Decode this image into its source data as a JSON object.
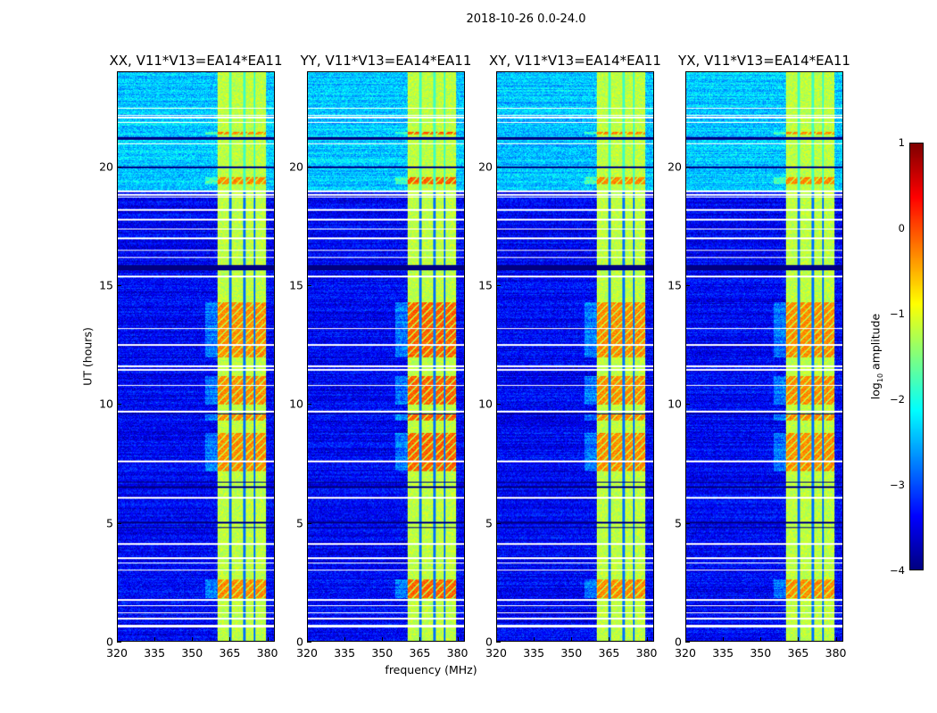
{
  "chart_data": {
    "type": "heatmap",
    "title": "2018-10-26 0.0-24.0",
    "xlabel": "frequency (MHz)",
    "ylabel": "UT (hours)",
    "xlim": [
      320,
      383
    ],
    "ylim": [
      0,
      24
    ],
    "xticks": [
      "320",
      "335",
      "350",
      "365",
      "380"
    ],
    "xtick_values": [
      320,
      335,
      350,
      365,
      380
    ],
    "yticks": [
      "0",
      "5",
      "10",
      "15",
      "20"
    ],
    "ytick_values": [
      0,
      5,
      10,
      15,
      20
    ],
    "colorbar": {
      "label_main": "log",
      "label_sub": "10",
      "label_rest": " amplitude",
      "colormap": "jet",
      "range": [
        -4,
        1
      ],
      "ticks": [
        "1",
        "0",
        "−1",
        "−2",
        "−3",
        "−4"
      ],
      "tick_values": [
        1,
        0,
        -1,
        -2,
        -3,
        -4
      ]
    },
    "panels": [
      {
        "title": "XX, V11*V13=EA14*EA11",
        "bright_rows_level": -0.3
      },
      {
        "title": "YY, V11*V13=EA14*EA11",
        "bright_rows_level": -0.1
      },
      {
        "title": "XY, V11*V13=EA14*EA11",
        "bright_rows_level": -0.3
      },
      {
        "title": "YX, V11*V13=EA14*EA11",
        "bright_rows_level": -0.3
      }
    ],
    "signal_band_mhz": [
      360,
      379.5
    ],
    "channel_gaps_mhz": [
      365.3,
      370.8,
      375.0
    ],
    "background_level": {
      "before_19h": -3.4,
      "after_19h": -2.4
    },
    "band_level": -1.2,
    "bright_time_ranges_hours": [
      [
        1.8,
        2.6
      ],
      [
        7.2,
        8.8
      ],
      [
        9.3,
        9.6
      ],
      [
        10.0,
        11.2
      ],
      [
        12.0,
        14.3
      ],
      [
        19.3,
        19.6
      ],
      [
        21.4,
        21.5
      ]
    ],
    "flagged_white_hours": [
      0.6,
      0.65,
      0.95,
      1.2,
      1.5,
      1.75,
      3.0,
      3.3,
      3.5,
      4.1,
      6.05,
      7.6,
      9.7,
      10.8,
      11.45,
      11.6,
      12.5,
      13.2,
      15.4,
      16.2,
      16.5,
      17.0,
      17.4,
      17.8,
      18.2,
      18.75,
      18.85,
      19.0,
      21.0,
      21.9,
      22.1,
      22.2,
      22.5
    ],
    "flagged_black_hours": [
      4.8,
      5.0,
      6.5,
      6.7,
      9.6,
      15.7,
      15.75,
      15.8,
      15.85,
      20.0,
      21.2,
      21.25
    ]
  }
}
